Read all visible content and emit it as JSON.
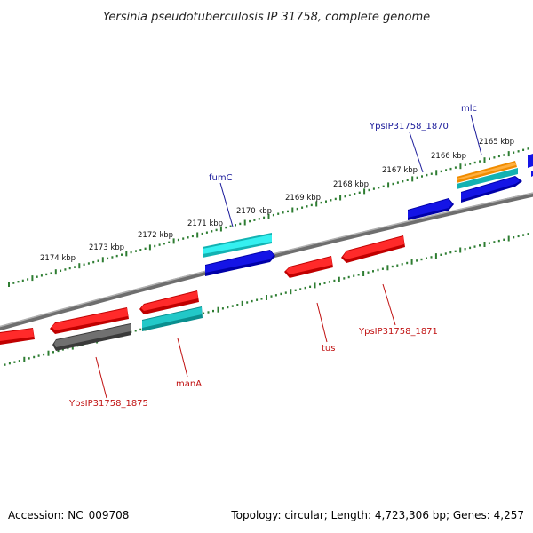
{
  "title": "Yersinia pseudotuberculosis IP 31758, complete genome",
  "footer": {
    "accession": "Accession: NC_009708",
    "topology": "Topology: circular; Length: 4,723,306 bp; Genes: 4,257"
  },
  "colors": {
    "backbone": "#8a8a8a",
    "ticks": "#2e7d32",
    "blue": "#0a0ad6",
    "cyan": "#1ec8c8",
    "red": "#e01010",
    "gray": "#5a5a5a",
    "orange": "#f08c00",
    "label_top": "#1a1a9a",
    "label_bottom": "#c01010"
  },
  "scale": {
    "labels": [
      "2174 kbp",
      "2173 kbp",
      "2172 kbp",
      "2171 kbp",
      "2170 kbp",
      "2169 kbp",
      "2168 kbp",
      "2167 kbp",
      "2166 kbp",
      "2165 kbp"
    ]
  },
  "gene_labels_top": [
    "fumC",
    "YpsIP31758_1870",
    "mlc"
  ],
  "gene_labels_bottom": [
    "tus",
    "YpsIP31758_1871",
    "manA",
    "YpsIP31758_1875"
  ]
}
